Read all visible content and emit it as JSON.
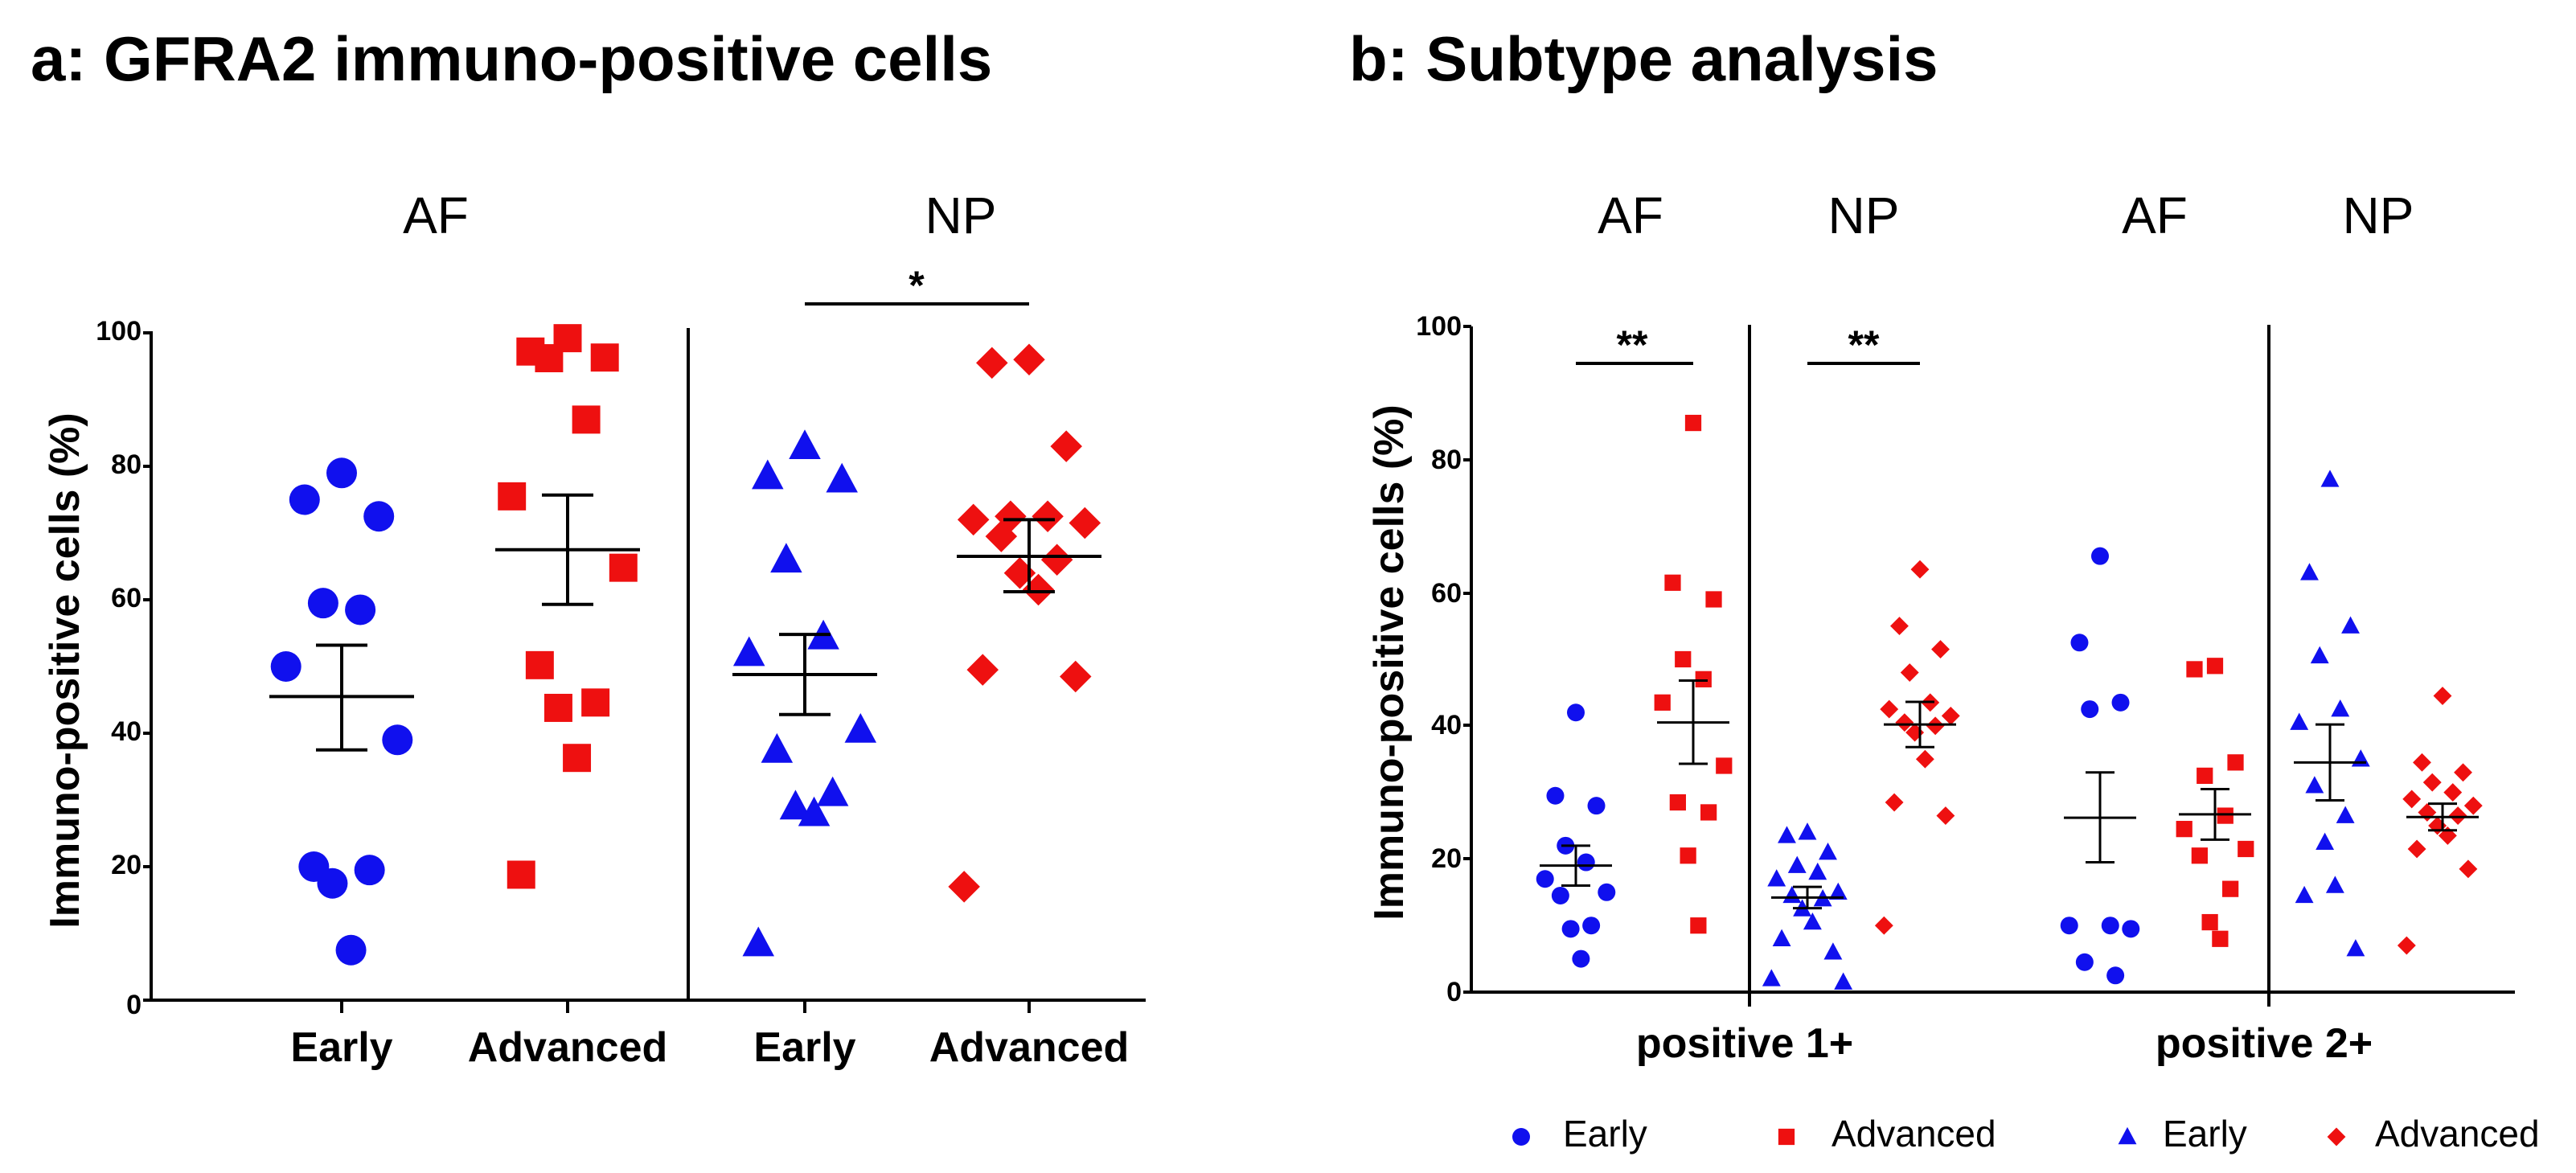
{
  "colors": {
    "blue": "#1010ee",
    "red": "#ee1010",
    "black": "#000000"
  },
  "chart_data": [
    {
      "id": "a",
      "type": "scatter",
      "title": "a: GFRA2 immuno-positive cells",
      "ylabel": "Immuno-positive cells (%)",
      "xlabel": "",
      "ylim": [
        0,
        100
      ],
      "yticks": [
        "0",
        "20",
        "40",
        "60",
        "80",
        "100"
      ],
      "grid": false,
      "group_labels": [
        "AF",
        "NP"
      ],
      "categories": [
        "Early",
        "Advanced",
        "Early",
        "Advanced"
      ],
      "series": [
        {
          "name": "AF Early",
          "group": "AF",
          "marker": "circle",
          "color": "#1010ee",
          "mean": 45.5,
          "sem_low": 37.5,
          "sem_high": 53.2,
          "values": [
            79,
            75,
            72.5,
            59.5,
            58.5,
            50,
            39,
            20,
            19.5,
            17.5,
            7.5
          ]
        },
        {
          "name": "AF Advanced",
          "group": "AF",
          "marker": "square",
          "color": "#ee1010",
          "mean": 67.5,
          "sem_low": 59.3,
          "sem_high": 75.7,
          "values": [
            99.2,
            97.2,
            96.3,
            96.2,
            87,
            75.5,
            64.8,
            50.2,
            44.6,
            43.8,
            36.3,
            18.8
          ]
        },
        {
          "name": "NP Early",
          "group": "NP",
          "marker": "triangle",
          "color": "#1010ee",
          "mean": 48.8,
          "sem_low": 42.8,
          "sem_high": 54.8,
          "values": [
            83,
            78.5,
            78,
            66,
            54.5,
            52,
            40.5,
            37.5,
            31,
            29,
            28,
            8.5
          ]
        },
        {
          "name": "NP Advanced",
          "group": "NP",
          "marker": "diamond",
          "color": "#ee1010",
          "mean": 66.5,
          "sem_low": 61.2,
          "sem_high": 72,
          "values": [
            96,
            95.5,
            83,
            72.5,
            72.5,
            72,
            71.5,
            69.5,
            66,
            64,
            61.5,
            49.5,
            48.5,
            17
          ]
        }
      ],
      "significance": [
        {
          "label": "*",
          "between": [
            2,
            3
          ]
        }
      ]
    },
    {
      "id": "b",
      "type": "scatter",
      "title": "b: Subtype analysis",
      "ylabel": "Immuno-positive cells (%)",
      "xlabel": "",
      "ylim": [
        0,
        100
      ],
      "yticks": [
        "0",
        "20",
        "40",
        "60",
        "80",
        "100"
      ],
      "grid": false,
      "group_labels": [
        "AF",
        "NP",
        "AF",
        "NP"
      ],
      "categories": [
        "positive 1+",
        "positive 2+"
      ],
      "series": [
        {
          "name": "positive 1+ AF Early",
          "marker": "circle",
          "color": "#1010ee",
          "mean": 19,
          "sem_low": 16,
          "sem_high": 22,
          "values": [
            42,
            29.5,
            28,
            22,
            19.5,
            17,
            15,
            14.5,
            10,
            9.5,
            5
          ]
        },
        {
          "name": "positive 1+ AF Advanced",
          "marker": "square",
          "color": "#ee1010",
          "mean": 40.5,
          "sem_low": 34.3,
          "sem_high": 46.8,
          "values": [
            85.5,
            61.5,
            59,
            50,
            47,
            43.5,
            34,
            28.5,
            27,
            20.5,
            10
          ]
        },
        {
          "name": "positive 1+ NP Early",
          "marker": "triangle",
          "color": "#1010ee",
          "mean": 14.2,
          "sem_low": 12.6,
          "sem_high": 15.8,
          "values": [
            24,
            23.5,
            21,
            19,
            18,
            17,
            15,
            14.5,
            14,
            12.5,
            10.5,
            8,
            6,
            2,
            1.5
          ]
        },
        {
          "name": "positive 1+ NP Advanced",
          "marker": "diamond",
          "color": "#ee1010",
          "mean": 40.2,
          "sem_low": 36.8,
          "sem_high": 43.6,
          "values": [
            63.5,
            55,
            51.5,
            48,
            43.5,
            42.5,
            41.5,
            40.5,
            40,
            39,
            35,
            28.5,
            26.5,
            10
          ]
        },
        {
          "name": "positive 2+ AF Early",
          "marker": "circle",
          "color": "#1010ee",
          "mean": 26.2,
          "sem_low": 19.5,
          "sem_high": 33,
          "values": [
            65.5,
            52.5,
            43.5,
            42.5,
            10,
            10,
            9.5,
            4.5,
            2.5
          ]
        },
        {
          "name": "positive 2+ AF Advanced",
          "marker": "square",
          "color": "#ee1010",
          "mean": 26.7,
          "sem_low": 22.9,
          "sem_high": 30.5,
          "values": [
            49,
            48.5,
            34.5,
            32.5,
            26.5,
            24.5,
            21.5,
            20.5,
            15.5,
            10.5,
            8
          ]
        },
        {
          "name": "positive 2+ NP Early",
          "marker": "triangle",
          "color": "#1010ee",
          "mean": 34.5,
          "sem_low": 28.8,
          "sem_high": 40.2,
          "values": [
            77,
            63,
            55,
            50.5,
            42.5,
            40.5,
            35,
            31,
            26.5,
            22.5,
            16,
            14.5,
            6.5
          ]
        },
        {
          "name": "positive 2+ NP Advanced",
          "marker": "diamond",
          "color": "#ee1010",
          "mean": 26.3,
          "sem_low": 24.3,
          "sem_high": 28.3,
          "values": [
            44.5,
            34.5,
            33,
            31.5,
            30,
            29,
            28,
            27,
            26.5,
            25,
            23.5,
            21.5,
            18.5,
            7
          ]
        }
      ],
      "significance": [
        {
          "label": "**",
          "between": [
            0,
            1
          ]
        },
        {
          "label": "**",
          "between": [
            2,
            3
          ]
        }
      ],
      "legend": {
        "position": "bottom",
        "entries": [
          {
            "label": "Early",
            "marker": "circle",
            "color": "#1010ee"
          },
          {
            "label": "Advanced",
            "marker": "square",
            "color": "#ee1010"
          },
          {
            "label": "Early",
            "marker": "triangle",
            "color": "#1010ee"
          },
          {
            "label": "Advanced",
            "marker": "diamond",
            "color": "#ee1010"
          }
        ]
      }
    }
  ]
}
